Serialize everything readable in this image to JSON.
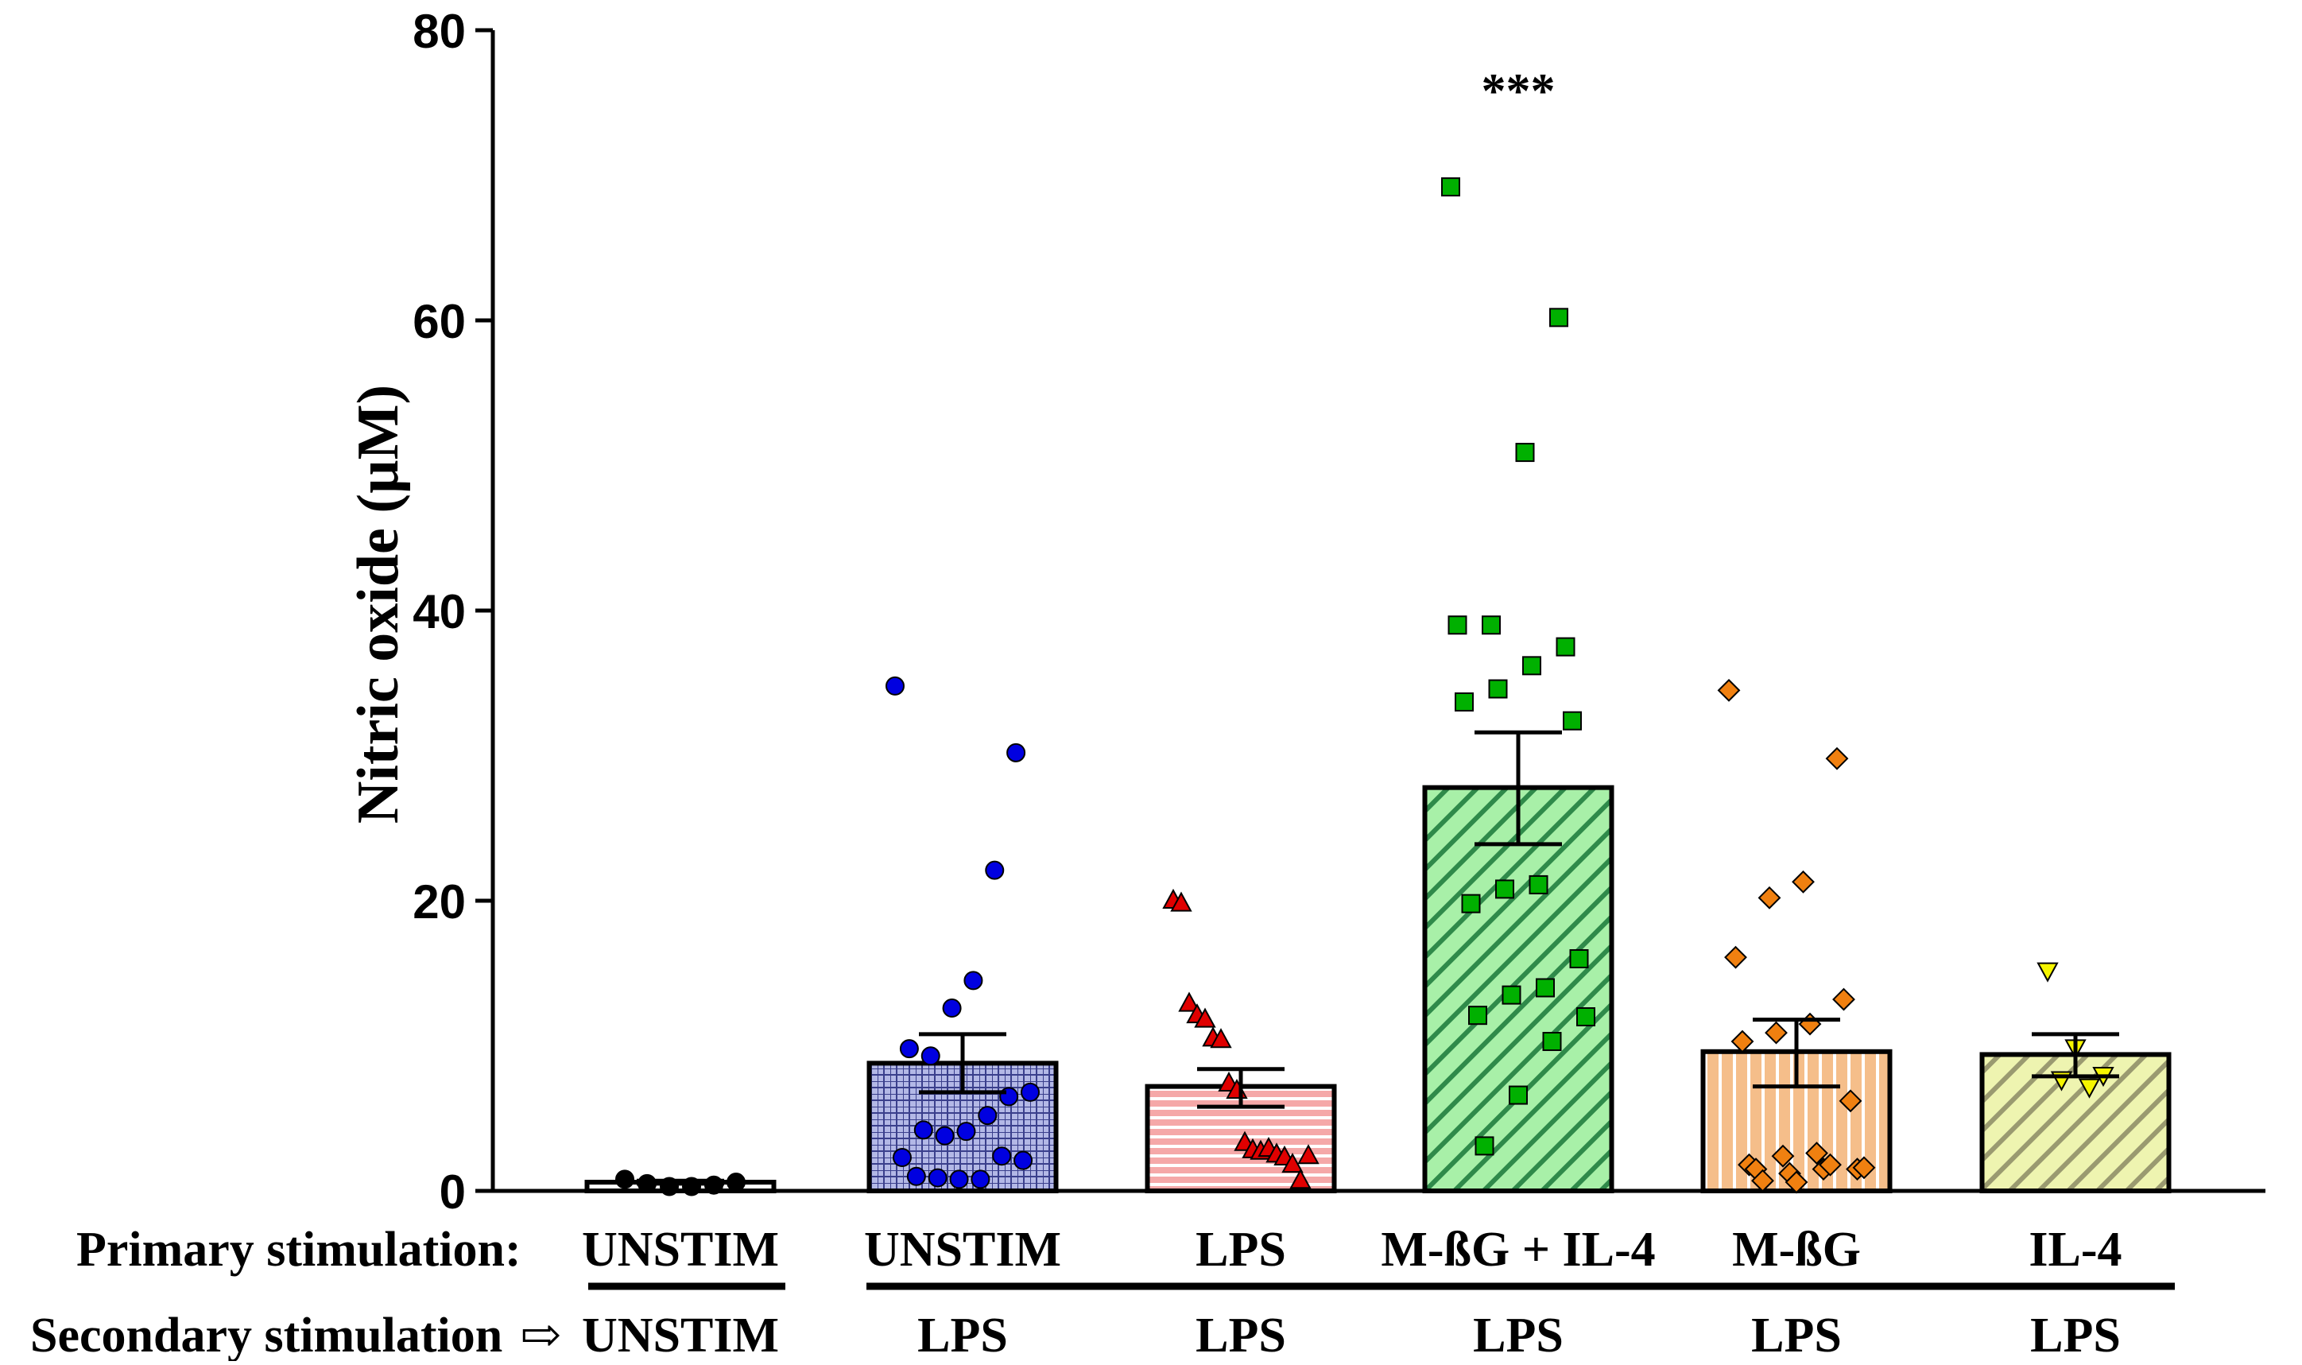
{
  "chart_data": {
    "type": "bar",
    "ylabel": "Nitric oxide (µM)",
    "ylim": [
      0,
      80
    ],
    "yticks": [
      0,
      20,
      40,
      60,
      80
    ],
    "annotation": "***",
    "annotation_group": 3,
    "row_labels": {
      "primary": "Primary stimulation:",
      "secondary": "Secondary stimulation",
      "secondary_arrow": "⇨"
    },
    "groups": [
      {
        "primary": "UNSTIM",
        "secondary": "UNSTIM",
        "mean": 0.6,
        "sem_low": 0.5,
        "sem_high": 0.7,
        "fill": "#ffffff",
        "pattern": "none",
        "marker": "circle",
        "marker_color": "#000000",
        "points": [
          0.8,
          0.5,
          0.3,
          0.3,
          0.4,
          0.6
        ]
      },
      {
        "primary": "UNSTIM",
        "secondary": "LPS",
        "mean": 8.8,
        "sem_low": 6.8,
        "sem_high": 10.8,
        "fill": "#b3b8e6",
        "pattern": "check",
        "marker": "circle",
        "marker_color": "#0000e0",
        "points": [
          34.8,
          30.2,
          22.1,
          14.5,
          12.6,
          9.3,
          9.8,
          6.8,
          6.5,
          5.2,
          4.1,
          3.8,
          4.2,
          2.3,
          2.1,
          2.4,
          0.8,
          0.8,
          0.9,
          1.0
        ]
      },
      {
        "primary": "LPS",
        "secondary": "LPS",
        "mean": 7.2,
        "sem_low": 5.8,
        "sem_high": 8.4,
        "fill": "#f5a8a8",
        "pattern": "hlines",
        "marker": "triangle-up",
        "marker_color": "#e00000",
        "points": [
          20.0,
          19.8,
          12.9,
          12.1,
          11.8,
          10.5,
          10.4,
          7.4,
          6.9,
          3.3,
          2.8,
          2.7,
          2.9,
          2.5,
          2.3,
          1.8,
          0.7,
          2.4
        ]
      },
      {
        "primary": "M-ßG + IL-4",
        "secondary": "LPS",
        "mean": 27.8,
        "sem_low": 23.9,
        "sem_high": 31.6,
        "fill": "#a8f0a8",
        "pattern": "diag",
        "marker": "square",
        "marker_color": "#00b000",
        "points": [
          69.2,
          60.2,
          50.9,
          39.0,
          39.0,
          37.5,
          36.2,
          34.6,
          33.7,
          32.4,
          21.1,
          20.8,
          19.8,
          16.0,
          14.0,
          13.5,
          12.1,
          12.0,
          10.3,
          6.6,
          3.1
        ]
      },
      {
        "primary": "M-ßG",
        "secondary": "LPS",
        "mean": 9.6,
        "sem_low": 7.2,
        "sem_high": 11.8,
        "fill": "#f5be8a",
        "pattern": "vlines",
        "marker": "diamond",
        "marker_color": "#f08010",
        "points": [
          34.5,
          29.8,
          21.3,
          20.2,
          16.1,
          13.2,
          11.5,
          10.9,
          10.3,
          6.2,
          2.6,
          2.4,
          1.8,
          1.5,
          1.5,
          1.2,
          1.5,
          1.6,
          1.8,
          0.6,
          0.7
        ]
      },
      {
        "primary": "IL-4",
        "secondary": "LPS",
        "mean": 9.4,
        "sem_low": 7.9,
        "sem_high": 10.8,
        "fill": "#e8f0a0",
        "pattern": "diag",
        "marker": "triangle-down",
        "marker_color": "#f5f500",
        "points": [
          15.2,
          9.9,
          8.0,
          7.7,
          7.2
        ]
      }
    ]
  }
}
